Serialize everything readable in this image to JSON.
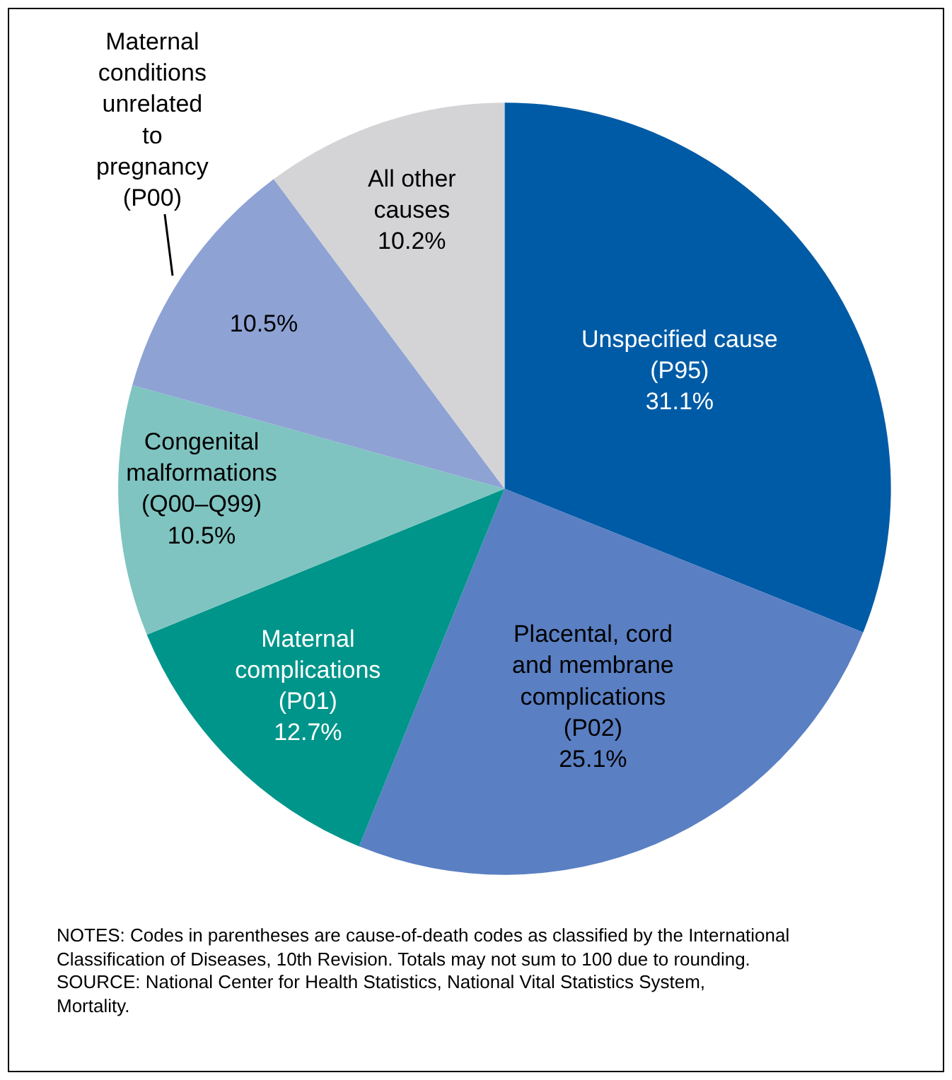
{
  "chart_data": {
    "type": "pie",
    "categories": [
      "Unspecified cause (P95)",
      "Placental, cord and membrane complications (P02)",
      "Maternal complications (P01)",
      "Congenital malformations (Q00–Q99)",
      "Maternal conditions unrelated to pregnancy (P00)",
      "All other causes"
    ],
    "values": [
      31.1,
      25.1,
      12.7,
      10.5,
      10.5,
      10.2
    ],
    "value_labels": [
      "31.1%",
      "25.1%",
      "12.7%",
      "10.5%",
      "10.5%",
      "10.2%"
    ],
    "colors": [
      "#005ba6",
      "#5a7fc3",
      "#00958a",
      "#7fc4c1",
      "#8ea2d4",
      "#d4d4d6"
    ],
    "annotations": [
      "NOTES: Codes in parentheses are cause-of-death codes as classified by the International Classification of Diseases, 10th Revision. Totals may not sum to 100 due to rounding.",
      "SOURCE: National Center for Health Statistics, National Vital Statistics System, Mortality."
    ]
  }
}
